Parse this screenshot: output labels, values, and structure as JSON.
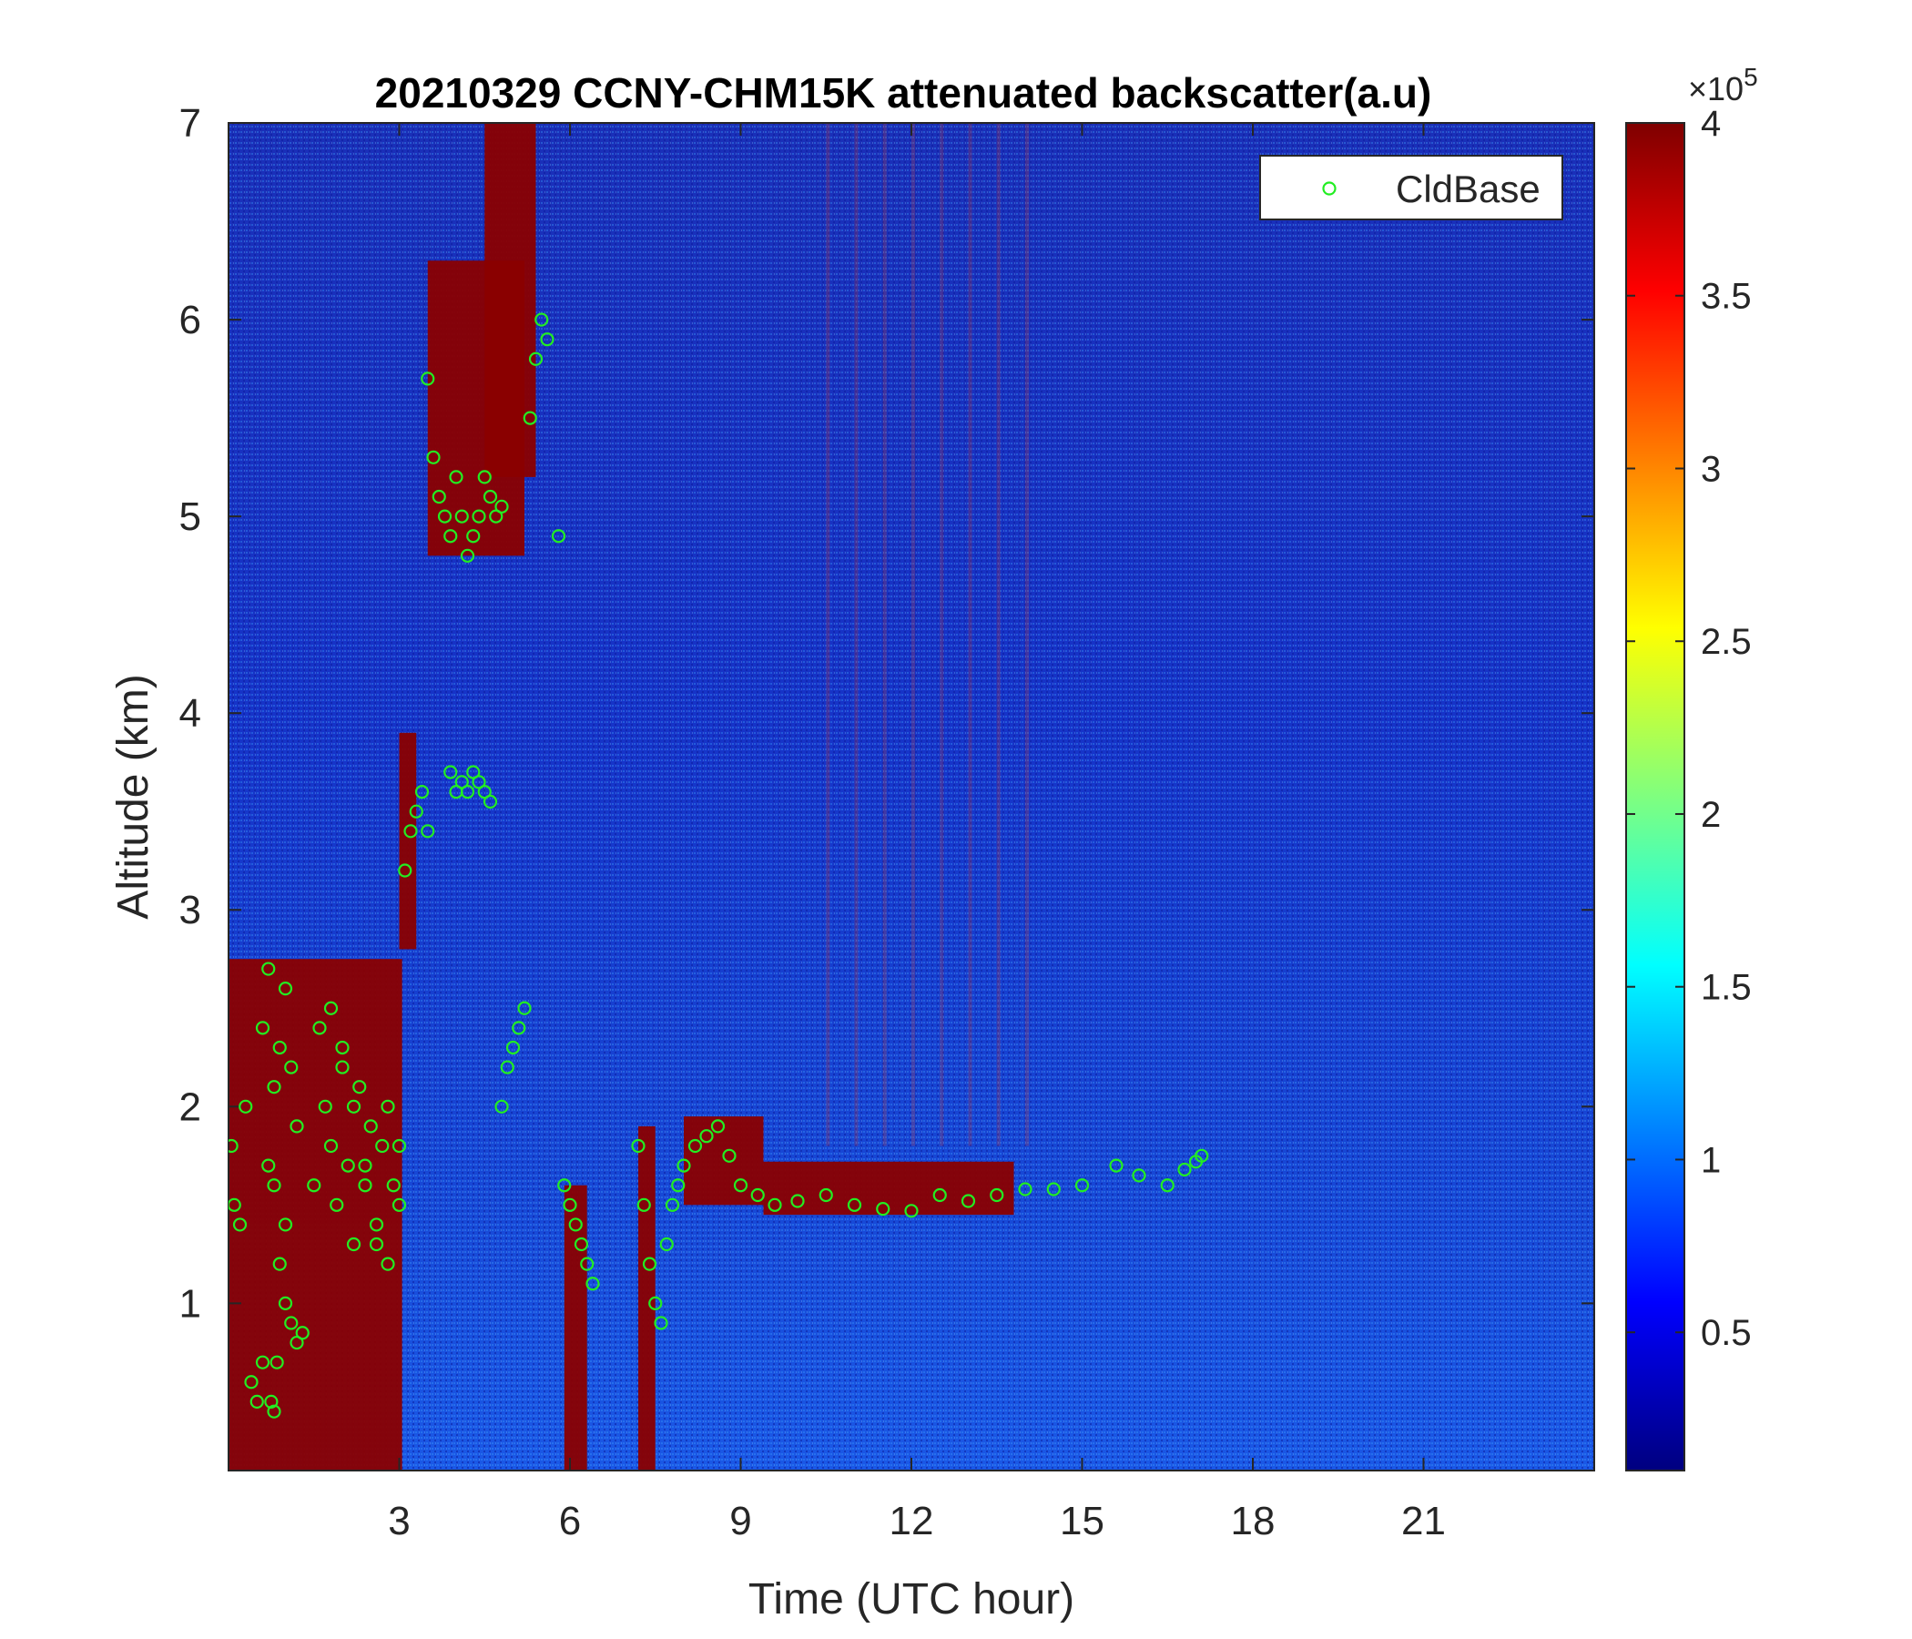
{
  "chart_data": {
    "type": "heatmap",
    "title": "20210329 CCNY-CHM15K attenuated backscatter(a.u)",
    "xlabel": "Time (UTC hour)",
    "ylabel": "Altitude (km)",
    "xlim": [
      0,
      24
    ],
    "ylim": [
      0.15,
      7
    ],
    "xticks": [
      3,
      6,
      9,
      12,
      15,
      18,
      21
    ],
    "yticks": [
      1,
      2,
      3,
      4,
      5,
      6,
      7
    ],
    "colorbar": {
      "colormap": "jet",
      "range": [
        0.1,
        4
      ],
      "ticks": [
        0.5,
        1,
        1.5,
        2,
        2.5,
        3,
        3.5,
        4
      ],
      "exponent_label": "×10",
      "exponent_power": "5"
    },
    "legend": {
      "position": "top-right",
      "entries": [
        "CldBase"
      ]
    },
    "series": [
      {
        "name": "CldBase",
        "type": "scatter",
        "marker": "circle-open",
        "color": "#22ee22",
        "x": [
          0.05,
          0.1,
          0.2,
          0.3,
          0.4,
          0.5,
          0.6,
          0.7,
          0.8,
          0.9,
          1.0,
          1.1,
          1.2,
          0.6,
          0.7,
          0.8,
          0.9,
          1.0,
          1.1,
          1.2,
          1.3,
          0.75,
          0.8,
          0.85,
          1.0,
          1.5,
          1.7,
          1.8,
          1.9,
          2.0,
          2.1,
          2.2,
          2.3,
          2.4,
          2.5,
          2.6,
          2.7,
          2.8,
          2.9,
          3.0,
          1.6,
          1.8,
          2.0,
          2.2,
          2.4,
          2.6,
          2.8,
          3.0,
          3.1,
          3.2,
          3.3,
          3.4,
          3.5,
          3.5,
          3.6,
          3.7,
          3.8,
          3.9,
          4.0,
          4.1,
          4.2,
          4.3,
          4.4,
          4.5,
          4.6,
          4.7,
          4.8,
          3.9,
          4.0,
          4.1,
          4.2,
          4.3,
          4.4,
          4.5,
          4.6,
          4.8,
          4.9,
          5.0,
          5.1,
          5.2,
          5.3,
          5.4,
          5.5,
          5.6,
          5.8,
          5.9,
          6.0,
          6.1,
          6.2,
          6.3,
          6.4,
          7.2,
          7.3,
          7.4,
          7.5,
          7.6,
          7.7,
          7.8,
          7.9,
          8.0,
          8.2,
          8.4,
          8.6,
          8.8,
          9.0,
          9.3,
          9.6,
          10.0,
          10.5,
          11.0,
          11.5,
          12.0,
          12.5,
          13.0,
          13.5,
          14.0,
          14.5,
          15.0,
          15.6,
          16.0,
          16.5,
          16.8,
          17.0,
          17.1
        ],
        "y": [
          1.8,
          1.5,
          1.4,
          2.0,
          0.6,
          0.5,
          0.7,
          1.7,
          2.1,
          2.3,
          2.6,
          2.2,
          1.9,
          2.4,
          2.7,
          1.6,
          1.2,
          1.0,
          0.9,
          0.8,
          0.85,
          0.5,
          0.45,
          0.7,
          1.4,
          1.6,
          2.0,
          1.8,
          1.5,
          2.2,
          1.7,
          1.3,
          2.1,
          1.6,
          1.9,
          1.4,
          1.8,
          1.2,
          1.6,
          1.5,
          2.4,
          2.5,
          2.3,
          2.0,
          1.7,
          1.3,
          2.0,
          1.8,
          3.2,
          3.4,
          3.5,
          3.6,
          3.4,
          5.7,
          5.3,
          5.1,
          5.0,
          4.9,
          5.2,
          5.0,
          4.8,
          4.9,
          5.0,
          5.2,
          5.1,
          5.0,
          5.05,
          3.7,
          3.6,
          3.65,
          3.6,
          3.7,
          3.65,
          3.6,
          3.55,
          2.0,
          2.2,
          2.3,
          2.4,
          2.5,
          5.5,
          5.8,
          6.0,
          5.9,
          4.9,
          1.6,
          1.5,
          1.4,
          1.3,
          1.2,
          1.1,
          1.8,
          1.5,
          1.2,
          1.0,
          0.9,
          1.3,
          1.5,
          1.6,
          1.7,
          1.8,
          1.85,
          1.9,
          1.75,
          1.6,
          1.55,
          1.5,
          1.52,
          1.55,
          1.5,
          1.48,
          1.47,
          1.55,
          1.52,
          1.55,
          1.58,
          1.58,
          1.6,
          1.7,
          1.65,
          1.6,
          1.68,
          1.72,
          1.75
        ],
        "note": ""
      }
    ]
  }
}
